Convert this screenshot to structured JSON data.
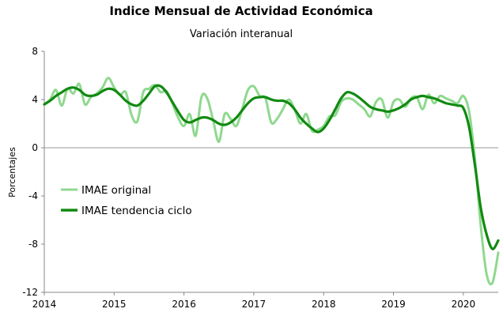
{
  "chart_data": {
    "type": "line",
    "title": "Indice Mensual de  Actividad Económica",
    "subtitle": "Variación interanual",
    "ylabel": "Porcentajes",
    "xlabel": "",
    "ylim": [
      -12,
      8
    ],
    "xlim": [
      2014.0,
      2020.5
    ],
    "yticks": [
      "8",
      "4",
      "0",
      "-4",
      "-8",
      "-12"
    ],
    "xticks": [
      "2014",
      "2015",
      "2016",
      "2017",
      "2018",
      "2019",
      "2020"
    ],
    "grid": false,
    "legend_position": "center-left",
    "colors": {
      "original": "#8fd88f",
      "trend": "#118a11",
      "zero_line": "#999999"
    },
    "series": [
      {
        "name": "IMAE original",
        "x": [
          2014.0,
          2014.083,
          2014.167,
          2014.25,
          2014.333,
          2014.417,
          2014.5,
          2014.583,
          2014.667,
          2014.75,
          2014.833,
          2014.917,
          2015.0,
          2015.083,
          2015.167,
          2015.25,
          2015.333,
          2015.417,
          2015.5,
          2015.583,
          2015.667,
          2015.75,
          2015.833,
          2015.917,
          2016.0,
          2016.083,
          2016.167,
          2016.25,
          2016.333,
          2016.417,
          2016.5,
          2016.583,
          2016.667,
          2016.75,
          2016.833,
          2016.917,
          2017.0,
          2017.083,
          2017.167,
          2017.25,
          2017.333,
          2017.417,
          2017.5,
          2017.583,
          2017.667,
          2017.75,
          2017.833,
          2017.917,
          2018.0,
          2018.083,
          2018.167,
          2018.25,
          2018.333,
          2018.417,
          2018.5,
          2018.583,
          2018.667,
          2018.75,
          2018.833,
          2018.917,
          2019.0,
          2019.083,
          2019.167,
          2019.25,
          2019.333,
          2019.417,
          2019.5,
          2019.583,
          2019.667,
          2019.75,
          2019.833,
          2019.917,
          2020.0,
          2020.083,
          2020.167,
          2020.25,
          2020.333,
          2020.417,
          2020.5
        ],
        "values": [
          3.6,
          4.0,
          4.8,
          3.5,
          4.9,
          4.5,
          5.3,
          3.6,
          4.2,
          4.5,
          5.0,
          5.8,
          5.0,
          4.4,
          4.6,
          2.7,
          2.2,
          4.6,
          4.9,
          5.2,
          4.6,
          4.7,
          3.7,
          2.5,
          1.8,
          2.8,
          1.0,
          4.2,
          4.1,
          2.3,
          0.5,
          2.8,
          2.4,
          1.8,
          3.2,
          4.8,
          5.1,
          4.3,
          4.1,
          2.1,
          2.4,
          3.2,
          4.0,
          3.2,
          2.0,
          2.8,
          1.4,
          1.5,
          1.8,
          2.6,
          2.7,
          3.8,
          4.1,
          4.0,
          3.6,
          3.2,
          2.6,
          3.8,
          4.0,
          2.5,
          3.8,
          4.0,
          3.4,
          4.1,
          4.2,
          3.2,
          4.4,
          3.7,
          4.3,
          4.1,
          3.9,
          3.7,
          4.3,
          3.0,
          -1.0,
          -6.5,
          -10.5,
          -11.2,
          -8.7
        ]
      },
      {
        "name": "IMAE tendencia ciclo",
        "x": [
          2014.0,
          2014.083,
          2014.167,
          2014.25,
          2014.333,
          2014.417,
          2014.5,
          2014.583,
          2014.667,
          2014.75,
          2014.833,
          2014.917,
          2015.0,
          2015.083,
          2015.167,
          2015.25,
          2015.333,
          2015.417,
          2015.5,
          2015.583,
          2015.667,
          2015.75,
          2015.833,
          2015.917,
          2016.0,
          2016.083,
          2016.167,
          2016.25,
          2016.333,
          2016.417,
          2016.5,
          2016.583,
          2016.667,
          2016.75,
          2016.833,
          2016.917,
          2017.0,
          2017.083,
          2017.167,
          2017.25,
          2017.333,
          2017.417,
          2017.5,
          2017.583,
          2017.667,
          2017.75,
          2017.833,
          2017.917,
          2018.0,
          2018.083,
          2018.167,
          2018.25,
          2018.333,
          2018.417,
          2018.5,
          2018.583,
          2018.667,
          2018.75,
          2018.833,
          2018.917,
          2019.0,
          2019.083,
          2019.167,
          2019.25,
          2019.333,
          2019.417,
          2019.5,
          2019.583,
          2019.667,
          2019.75,
          2019.833,
          2019.917,
          2020.0,
          2020.083,
          2020.167,
          2020.25,
          2020.333,
          2020.417,
          2020.5
        ],
        "values": [
          3.6,
          3.9,
          4.3,
          4.6,
          4.9,
          5.0,
          4.8,
          4.4,
          4.3,
          4.4,
          4.7,
          4.9,
          4.8,
          4.4,
          3.9,
          3.6,
          3.5,
          3.9,
          4.5,
          5.1,
          5.1,
          4.6,
          3.8,
          3.0,
          2.3,
          2.1,
          2.3,
          2.5,
          2.5,
          2.3,
          2.0,
          1.9,
          2.1,
          2.5,
          3.1,
          3.7,
          4.1,
          4.2,
          4.2,
          4.0,
          3.9,
          3.9,
          3.7,
          3.2,
          2.5,
          2.0,
          1.6,
          1.3,
          1.6,
          2.3,
          3.2,
          4.1,
          4.6,
          4.5,
          4.2,
          3.8,
          3.4,
          3.2,
          3.1,
          3.0,
          3.1,
          3.3,
          3.6,
          4.0,
          4.2,
          4.3,
          4.2,
          4.1,
          3.9,
          3.7,
          3.6,
          3.5,
          3.3,
          1.7,
          -1.5,
          -5.0,
          -7.2,
          -8.4,
          -7.7
        ]
      }
    ]
  }
}
